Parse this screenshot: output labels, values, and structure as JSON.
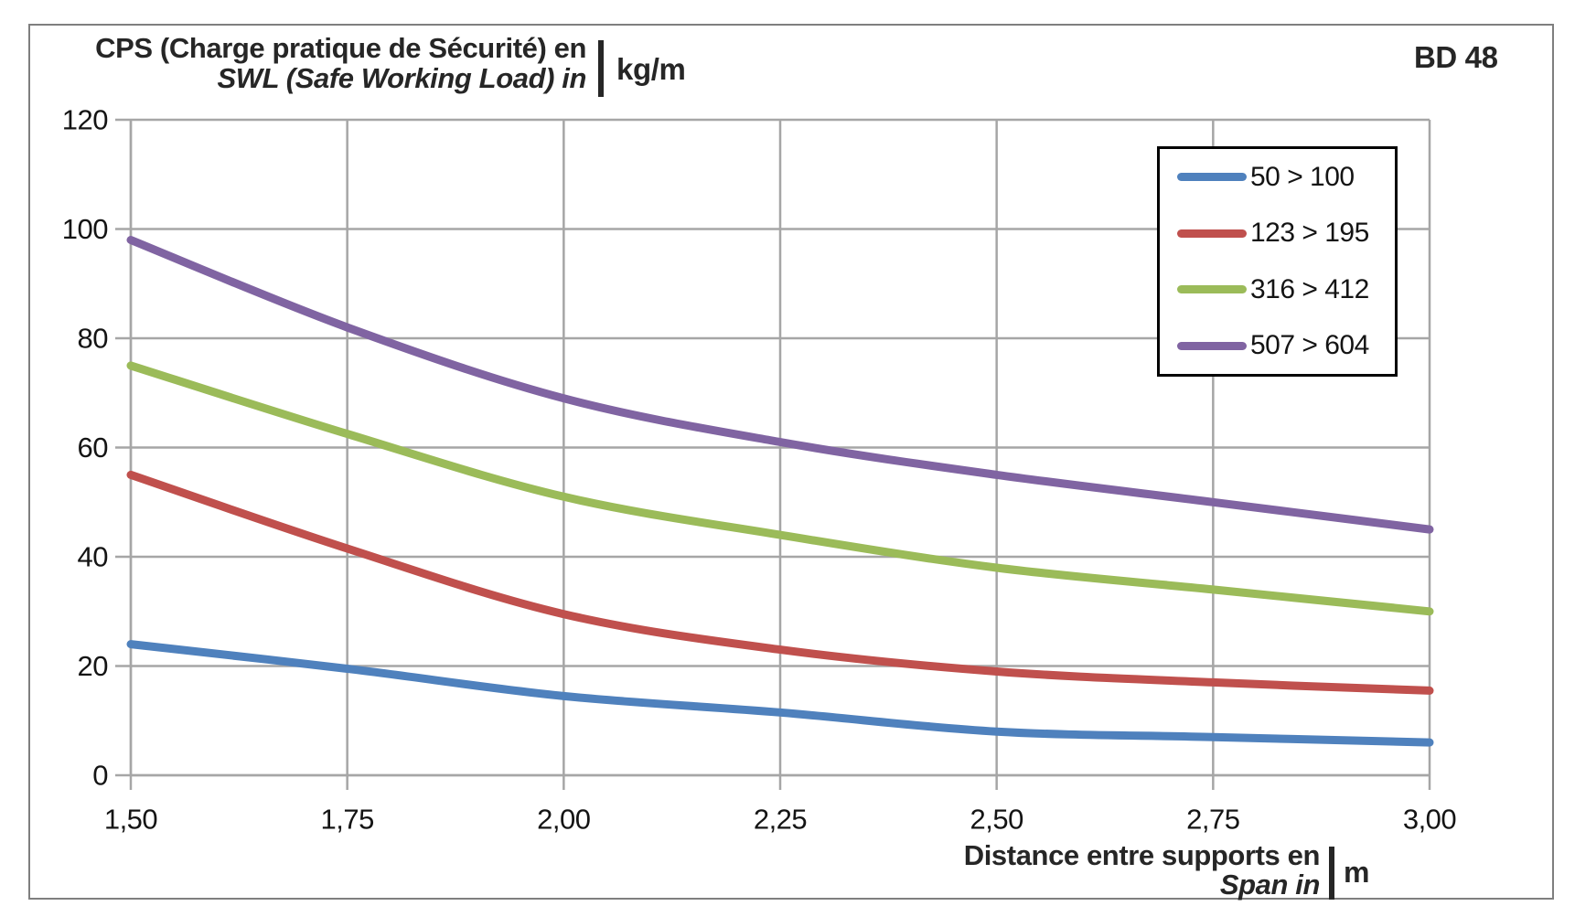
{
  "frame": {
    "corner_label": "BD 48"
  },
  "y_axis_title": {
    "line1_fr": "CPS (Charge pratique de Sécurité) en",
    "line2_en": "SWL (Safe Working Load) in",
    "unit": "kg/m"
  },
  "x_axis_title": {
    "line1_fr": "Distance entre supports en",
    "line2_en": "Span in",
    "unit": "m"
  },
  "chart_data": {
    "type": "line",
    "title": "BD 48",
    "xlabel": "Distance entre supports en / Span in (m)",
    "ylabel": "CPS (Charge pratique de Sécurité) / SWL (Safe Working Load) (kg/m)",
    "x": [
      1.5,
      1.75,
      2.0,
      2.25,
      2.5,
      2.75,
      3.0
    ],
    "x_tick_labels": [
      "1,50",
      "1,75",
      "2,00",
      "2,25",
      "2,50",
      "2,75",
      "3,00"
    ],
    "y_ticks": [
      0,
      20,
      40,
      60,
      80,
      100,
      120
    ],
    "xlim": [
      1.5,
      3.0
    ],
    "ylim": [
      0,
      120
    ],
    "grid": true,
    "smooth_lines": true,
    "legend_position": "top-right-inside",
    "series": [
      {
        "name": "50 > 100",
        "color": "#4F81BD",
        "values": [
          24,
          19.5,
          14.5,
          11.5,
          8,
          7,
          6
        ]
      },
      {
        "name": "123 > 195",
        "color": "#C0504D",
        "values": [
          55,
          41.5,
          29.5,
          23,
          19,
          17,
          15.5
        ]
      },
      {
        "name": "316 > 412",
        "color": "#9BBB59",
        "values": [
          75,
          62.5,
          51,
          44,
          38,
          34,
          30
        ]
      },
      {
        "name": "507 > 604",
        "color": "#8064A2",
        "values": [
          98,
          82,
          69,
          61,
          55,
          50,
          45
        ]
      }
    ],
    "colors": {
      "gridline": "#A6A6A6",
      "axis": "#A6A6A6",
      "tick_text": "#141414",
      "title_text": "#262626"
    }
  }
}
